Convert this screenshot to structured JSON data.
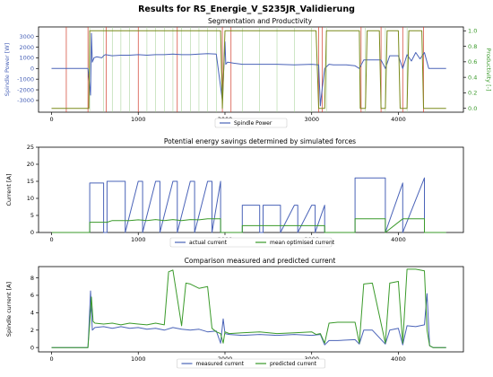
{
  "figure_title": "Results for RS_Energie_V_S235JR_Validierung",
  "colors": {
    "blue": "#4a63b8",
    "green": "#3a9a2a",
    "red": "#d23c2c",
    "olive": "#7a8a1a",
    "grid_bg": "#ffffff",
    "axis": "#000000"
  },
  "chart_data": [
    {
      "type": "line",
      "title": "Segmentation and Productivity",
      "xlabel": "",
      "ylabel": "Spindle Power [W]",
      "ylabel_right": "Productivity [-]",
      "xlim": [
        -150,
        4750
      ],
      "ylim": [
        -4100,
        3900
      ],
      "ylim_right": [
        -0.05,
        1.05
      ],
      "xticks": [
        0,
        1000,
        2000,
        3000,
        4000
      ],
      "xtick_labels": [
        "0",
        "1000",
        "2000",
        "3000",
        "4000"
      ],
      "yticks": [
        -3000,
        -2000,
        -1000,
        0,
        1000,
        2000,
        3000
      ],
      "ytick_labels": [
        "-3000",
        "-2000",
        "-1000",
        "0",
        "1000",
        "2000",
        "3000"
      ],
      "yticks_right": [
        0.0,
        0.2,
        0.4,
        0.6,
        0.8,
        1.0
      ],
      "ytick_labels_right": [
        "0.0",
        "0.2",
        "0.4",
        "0.6",
        "0.8",
        "1.0"
      ],
      "legend": {
        "location": "below-center",
        "entries": [
          "Spindle Power"
        ]
      },
      "series": [
        {
          "name": "Spindle Power",
          "axis": "left",
          "color": "blue",
          "x": [
            0,
            420,
            450,
            460,
            470,
            490,
            520,
            580,
            600,
            620,
            700,
            800,
            900,
            1000,
            1100,
            1200,
            1300,
            1400,
            1500,
            1600,
            1700,
            1800,
            1900,
            1970,
            2000,
            2010,
            2030,
            2100,
            2200,
            2400,
            2600,
            2800,
            3000,
            3080,
            3100,
            3120,
            3150,
            3200,
            3250,
            3300,
            3400,
            3500,
            3550,
            3600,
            3700,
            3800,
            3850,
            3900,
            4000,
            4050,
            4100,
            4150,
            4200,
            4250,
            4300,
            4350,
            4450,
            4550
          ],
          "y": [
            0,
            0,
            -2500,
            3300,
            600,
            1000,
            1100,
            1000,
            1200,
            1300,
            1200,
            1250,
            1250,
            1300,
            1250,
            1300,
            1300,
            1350,
            1300,
            1300,
            1350,
            1400,
            1350,
            -3000,
            2500,
            400,
            600,
            500,
            400,
            400,
            400,
            350,
            400,
            350,
            -3500,
            -2000,
            0,
            400,
            350,
            350,
            350,
            250,
            0,
            800,
            800,
            800,
            0,
            1200,
            1200,
            0,
            1300,
            700,
            1500,
            900,
            1500,
            0,
            0,
            0
          ]
        },
        {
          "name": "",
          "axis": "right",
          "color": "olive",
          "x": [
            0,
            430,
            440,
            600,
            640,
            950,
            1000,
            1400,
            1450,
            1950,
            1970,
            2000,
            2050,
            3050,
            3080,
            3150,
            3170,
            3550,
            3560,
            3620,
            3640,
            3780,
            3800,
            3850,
            3870,
            4000,
            4020,
            4100,
            4120,
            4270,
            4290,
            4400,
            4550
          ],
          "y": [
            0,
            0,
            1,
            1,
            1,
            1,
            1,
            1,
            1,
            1,
            0,
            1,
            1,
            1,
            0,
            0,
            1,
            1,
            0,
            0,
            1,
            1,
            0,
            0,
            1,
            1,
            0,
            0,
            1,
            1,
            0,
            0,
            0
          ]
        }
      ]
    },
    {
      "type": "line",
      "title": "Potential energy savings determined by simulated forces",
      "xlabel": "",
      "ylabel": "Current [A]",
      "xlim": [
        -150,
        4750
      ],
      "ylim": [
        0,
        25
      ],
      "xticks": [
        0,
        1000,
        2000,
        3000,
        4000
      ],
      "xtick_labels": [
        "0",
        "1000",
        "2000",
        "3000",
        "4000"
      ],
      "yticks": [
        0,
        5,
        10,
        15,
        20,
        25
      ],
      "ytick_labels": [
        "0",
        "5",
        "10",
        "15",
        "20",
        "25"
      ],
      "legend": {
        "location": "below-center",
        "entries": [
          "actual current",
          "mean optimised current"
        ]
      },
      "series": [
        {
          "name": "actual current",
          "color": "blue",
          "x": [
            0,
            440,
            440,
            600,
            600,
            640,
            640,
            800,
            850,
            850,
            1000,
            1050,
            1050,
            1200,
            1250,
            1250,
            1400,
            1450,
            1450,
            1600,
            1650,
            1650,
            1800,
            1850,
            1850,
            1950,
            1950,
            2200,
            2200,
            2400,
            2400,
            2440,
            2440,
            2600,
            2640,
            2640,
            2800,
            2840,
            2840,
            3000,
            3040,
            3040,
            3150,
            3150,
            3500,
            3500,
            3850,
            3850,
            4050,
            4050,
            4300,
            4300,
            4550
          ],
          "y": [
            0,
            0,
            14.5,
            14.5,
            0,
            0,
            15,
            15,
            15,
            0,
            15,
            15,
            0,
            15,
            15,
            0,
            15,
            15,
            0,
            15,
            15,
            0,
            15,
            15,
            0,
            15,
            0,
            0,
            8,
            8,
            0,
            0,
            8,
            8,
            8,
            0,
            8,
            8,
            0,
            8,
            8,
            0,
            8,
            0,
            0,
            16,
            16,
            0,
            14.5,
            0,
            16,
            0,
            0
          ]
        },
        {
          "name": "mean optimised current",
          "color": "green",
          "x": [
            0,
            440,
            440,
            600,
            640,
            700,
            800,
            900,
            1000,
            1100,
            1200,
            1300,
            1400,
            1500,
            1600,
            1700,
            1800,
            1950,
            1950,
            2200,
            2200,
            2400,
            2440,
            2600,
            2640,
            2800,
            2840,
            3000,
            3040,
            3150,
            3150,
            3500,
            3500,
            3850,
            3850,
            4050,
            4300,
            4300,
            4550
          ],
          "y": [
            0,
            0,
            3,
            3,
            3,
            3.5,
            3.5,
            3.5,
            3.7,
            3.5,
            3.8,
            3.5,
            3.8,
            3.5,
            3.8,
            3.7,
            4,
            4,
            0,
            0,
            2,
            2,
            2,
            2,
            2,
            2,
            2,
            2,
            2,
            2,
            0,
            0,
            4,
            4,
            0,
            4,
            4,
            0,
            0
          ]
        }
      ]
    },
    {
      "type": "line",
      "title": "Comparison measured and predicted current",
      "xlabel": "",
      "ylabel": "Spindle current [A]",
      "xlim": [
        -150,
        4750
      ],
      "ylim": [
        -0.5,
        9.3
      ],
      "xticks": [
        0,
        1000,
        2000,
        3000,
        4000
      ],
      "xtick_labels": [
        "0",
        "1000",
        "2000",
        "3000",
        "4000"
      ],
      "yticks": [
        0,
        2,
        4,
        6,
        8
      ],
      "ytick_labels": [
        "0",
        "2",
        "4",
        "6",
        "8"
      ],
      "legend": {
        "location": "below-center",
        "entries": [
          "measured current",
          "predicted current"
        ]
      },
      "series": [
        {
          "name": "measured current",
          "color": "blue",
          "x": [
            0,
            420,
            430,
            450,
            470,
            500,
            600,
            700,
            800,
            900,
            1000,
            1100,
            1200,
            1300,
            1400,
            1500,
            1600,
            1700,
            1800,
            1900,
            1950,
            1980,
            2000,
            2050,
            2200,
            2400,
            2600,
            2800,
            3000,
            3100,
            3150,
            3200,
            3300,
            3500,
            3550,
            3600,
            3700,
            3850,
            3900,
            4000,
            4050,
            4100,
            4200,
            4300,
            4330,
            4360,
            4400,
            4550
          ],
          "y": [
            0,
            0,
            2.0,
            6.5,
            2.0,
            2.3,
            2.4,
            2.2,
            2.4,
            2.2,
            2.3,
            2.1,
            2.2,
            2.0,
            2.3,
            2.1,
            2.0,
            2.1,
            1.8,
            1.9,
            0.5,
            3.3,
            1.6,
            1.5,
            1.4,
            1.5,
            1.4,
            1.5,
            1.4,
            1.5,
            0.3,
            0.8,
            0.8,
            0.9,
            0.4,
            2.0,
            2.0,
            0.4,
            2.0,
            2.2,
            0.3,
            2.5,
            2.4,
            2.6,
            6.2,
            0.2,
            0,
            0
          ]
        },
        {
          "name": "predicted current",
          "color": "green",
          "x": [
            0,
            420,
            440,
            460,
            480,
            500,
            600,
            700,
            800,
            900,
            1000,
            1100,
            1200,
            1300,
            1350,
            1400,
            1500,
            1550,
            1600,
            1700,
            1800,
            1850,
            1900,
            1950,
            1980,
            2000,
            2050,
            2200,
            2400,
            2600,
            2800,
            3000,
            3050,
            3100,
            3150,
            3200,
            3300,
            3500,
            3550,
            3600,
            3700,
            3850,
            3900,
            4000,
            4050,
            4100,
            4200,
            4300,
            4330,
            4360,
            4400,
            4550
          ],
          "y": [
            0,
            0,
            2.8,
            5.8,
            3.0,
            2.8,
            2.7,
            2.8,
            2.6,
            2.8,
            2.7,
            2.6,
            2.8,
            2.6,
            8.7,
            8.9,
            2.5,
            7.4,
            7.3,
            6.8,
            7.0,
            2.2,
            1.8,
            1.6,
            0.5,
            1.8,
            1.6,
            1.7,
            1.8,
            1.6,
            1.7,
            1.8,
            1.5,
            1.6,
            0.5,
            2.8,
            2.9,
            2.9,
            0.5,
            7.3,
            7.4,
            0.5,
            7.4,
            7.6,
            0.5,
            9.0,
            9.0,
            8.8,
            2.0,
            0.2,
            0,
            0
          ]
        }
      ]
    }
  ]
}
